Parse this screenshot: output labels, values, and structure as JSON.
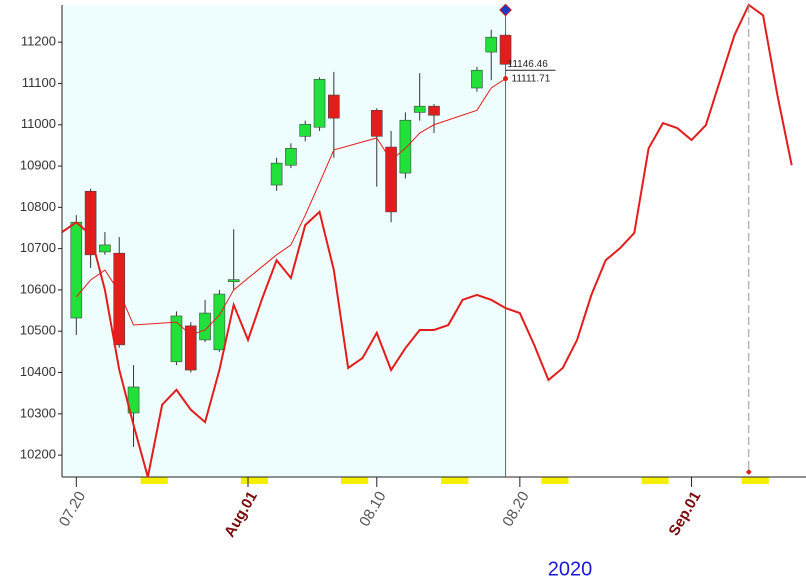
{
  "chart_data": {
    "type": "candlestick",
    "year_label": "2020",
    "xlim": [
      "2020-07-19",
      "2020-09-09"
    ],
    "ylim": [
      10147,
      11290
    ],
    "xticks": [
      {
        "value": "2020-07-20",
        "label": "07.20"
      },
      {
        "value": "2020-08-01",
        "label": "Aug.01"
      },
      {
        "value": "2020-08-10",
        "label": "08.10"
      },
      {
        "value": "2020-08-20",
        "label": "08.20"
      },
      {
        "value": "2020-09-01",
        "label": "Sep.01"
      }
    ],
    "yticks": [
      10200,
      10300,
      10400,
      10500,
      10600,
      10700,
      10800,
      10900,
      11000,
      11100,
      11200
    ],
    "candles": {
      "up_color": "#22e03a",
      "down_color": "#e31c1c",
      "x": [
        "2020-07-20",
        "2020-07-21",
        "2020-07-22",
        "2020-07-23",
        "2020-07-24",
        "2020-07-27",
        "2020-07-28",
        "2020-07-29",
        "2020-07-30",
        "2020-07-31",
        "2020-08-03",
        "2020-08-04",
        "2020-08-05",
        "2020-08-06",
        "2020-08-07",
        "2020-08-10",
        "2020-08-11",
        "2020-08-12",
        "2020-08-13",
        "2020-08-14",
        "2020-08-17",
        "2020-08-18",
        "2020-08-19"
      ],
      "open": [
        10532,
        10839,
        10692,
        10689,
        10302,
        10426,
        10513,
        10479,
        10455,
        10620,
        10854,
        10902,
        10972,
        10994,
        11072,
        11035,
        10946,
        10883,
        11030,
        11045,
        11089,
        11176,
        11217
      ],
      "high": [
        10781,
        10845,
        10740,
        10728,
        10418,
        10548,
        10522,
        10576,
        10600,
        10747,
        10920,
        10955,
        11010,
        11115,
        11128,
        11040,
        10985,
        11030,
        11125,
        11050,
        11140,
        11230,
        11220
      ],
      "low": [
        10491,
        10653,
        10685,
        10460,
        10220,
        10418,
        10400,
        10474,
        10450,
        10600,
        10840,
        10895,
        10960,
        10985,
        10920,
        10850,
        10764,
        10870,
        11010,
        10980,
        11080,
        11108,
        11146.46
      ],
      "close": [
        10764,
        10685,
        10709,
        10467,
        10365,
        10537,
        10406,
        10544,
        10590,
        10625,
        10907,
        10943,
        11001,
        11110,
        11016,
        10972,
        10789,
        11011,
        11045,
        11023,
        11132,
        11212,
        11146.46
      ],
      "last_close_label": "11146.46"
    },
    "moving_average": {
      "color": "#e31c1c",
      "values": [
        10583,
        10624,
        10648,
        10595,
        10515,
        10522,
        10491,
        10503,
        10539,
        10600,
        10685,
        10709,
        10781,
        10859,
        10939,
        10968,
        10914,
        10943,
        10980,
        11000,
        11035,
        11089,
        11111.71
      ],
      "last_label": "11111.71"
    },
    "projection": {
      "color": "#e31c1c",
      "x": [
        "2020-07-19",
        "2020-07-20",
        "2020-07-21",
        "2020-07-22",
        "2020-07-23",
        "2020-07-24",
        "2020-07-25",
        "2020-07-26",
        "2020-07-27",
        "2020-07-28",
        "2020-07-29",
        "2020-07-30",
        "2020-07-31",
        "2020-08-01",
        "2020-08-02",
        "2020-08-03",
        "2020-08-04",
        "2020-08-05",
        "2020-08-06",
        "2020-08-07",
        "2020-08-08",
        "2020-08-09",
        "2020-08-10",
        "2020-08-11",
        "2020-08-12",
        "2020-08-13",
        "2020-08-14",
        "2020-08-15",
        "2020-08-16",
        "2020-08-17",
        "2020-08-18",
        "2020-08-19",
        "2020-08-20",
        "2020-08-21",
        "2020-08-22",
        "2020-08-23",
        "2020-08-24",
        "2020-08-25",
        "2020-08-26",
        "2020-08-27",
        "2020-08-28",
        "2020-08-29",
        "2020-08-30",
        "2020-08-31",
        "2020-09-01",
        "2020-09-02",
        "2020-09-03",
        "2020-09-04",
        "2020-09-05",
        "2020-09-06",
        "2020-09-07",
        "2020-09-08"
      ],
      "values": [
        10740,
        10764,
        10733,
        10600,
        10407,
        10273,
        10147,
        10322,
        10358,
        10310,
        10280,
        10406,
        10564,
        10479,
        10580,
        10672,
        10629,
        10757,
        10789,
        10648,
        10411,
        10435,
        10496,
        10406,
        10459,
        10503,
        10503,
        10515,
        10576,
        10588,
        10576,
        10556,
        10544,
        10467,
        10382,
        10411,
        10479,
        10588,
        10672,
        10701,
        10738,
        10943,
        11004,
        10992,
        10963,
        10999,
        11108,
        11217,
        11290,
        11265,
        11072,
        10902
      ]
    }
  }
}
